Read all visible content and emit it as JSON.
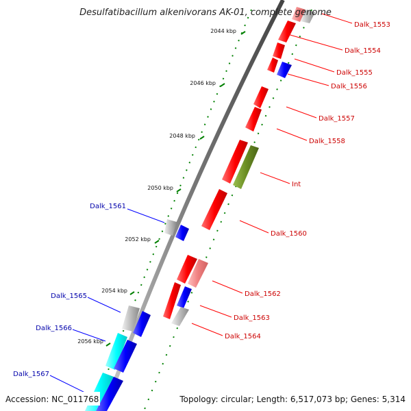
{
  "header": {
    "title": "Desulfatibacillum alkenivorans AK-01, complete genome"
  },
  "footer": {
    "accession": "Accession: NC_011768",
    "topology": "Topology: circular; Length: 6,517,073 bp; Genes: 5,314"
  },
  "ticks": [
    "2044 kbp",
    "2046 kbp",
    "2048 kbp",
    "2050 kbp",
    "2052 kbp",
    "2054 kbp",
    "2056 kbp"
  ],
  "labels_right": [
    "Dalk_1553",
    "Dalk_1554",
    "Dalk_1555",
    "Dalk_1556",
    "Dalk_1557",
    "Dalk_1558",
    "Int",
    "Dalk_1560",
    "Dalk_1562",
    "Dalk_1563",
    "Dalk_1564"
  ],
  "labels_left": [
    "Dalk_1561",
    "Dalk_1565",
    "Dalk_1566",
    "Dalk_1567"
  ],
  "colors": {
    "forward_red": "#ff0000",
    "reverse_blue": "#0000ff",
    "pink": "#f08080",
    "olive": "#6b8e23",
    "gray": "#bbbbbb",
    "cyan": "#00ffff",
    "label_red": "#cc0000",
    "label_blue": "#0000aa",
    "tick_green": "#008000"
  }
}
